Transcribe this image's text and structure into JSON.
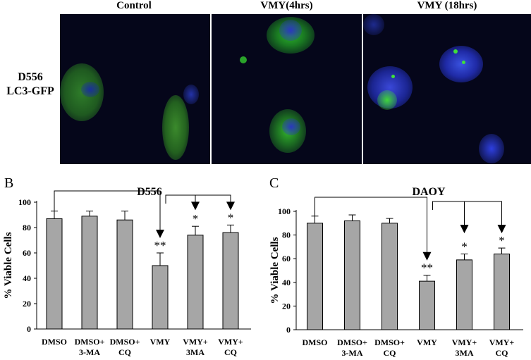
{
  "figure": {
    "column_headers": [
      "Control",
      "VMY(4hrs)",
      "VMY (18hrs)"
    ],
    "row_label_line1": "D556",
    "row_label_line2": "LC3-GFP"
  },
  "chart_data": [
    {
      "type": "bar",
      "panel_letter": "B",
      "title": "D556",
      "ylabel": "% Viable Cells",
      "xlabel": "",
      "ylim": [
        0,
        100
      ],
      "yticks": [
        0,
        20,
        40,
        60,
        80,
        100
      ],
      "categories": [
        [
          "DMSO"
        ],
        [
          "DMSO+",
          "3-MA"
        ],
        [
          "DMSO+",
          "CQ"
        ],
        [
          "VMY"
        ],
        [
          "VMY+",
          "3MA"
        ],
        [
          "VMY+",
          "CQ"
        ]
      ],
      "values": [
        87,
        89,
        86,
        50,
        74,
        76
      ],
      "errors": [
        6,
        4,
        7,
        10,
        7,
        6
      ],
      "significance": [
        "",
        "",
        "",
        "**",
        "*",
        "*"
      ],
      "bar_color": "#a6a6a6",
      "grid": false,
      "legend": "none"
    },
    {
      "type": "bar",
      "panel_letter": "C",
      "title": "DAOY",
      "ylabel": "% Viable Cells",
      "xlabel": "",
      "ylim": [
        0,
        100
      ],
      "yticks": [
        0,
        20,
        40,
        60,
        80,
        100
      ],
      "categories": [
        [
          "DMSO"
        ],
        [
          "DMSO+",
          "3-MA"
        ],
        [
          "DMSO+",
          "CQ"
        ],
        [
          "VMY"
        ],
        [
          "VMY+",
          "3MA"
        ],
        [
          "VMY+",
          "CQ"
        ]
      ],
      "values": [
        90,
        92,
        90,
        41,
        59,
        64
      ],
      "errors": [
        6,
        5,
        4,
        5,
        5,
        5
      ],
      "significance": [
        "",
        "",
        "",
        "**",
        "*",
        "*"
      ],
      "bar_color": "#a6a6a6",
      "grid": false,
      "legend": "none"
    }
  ]
}
